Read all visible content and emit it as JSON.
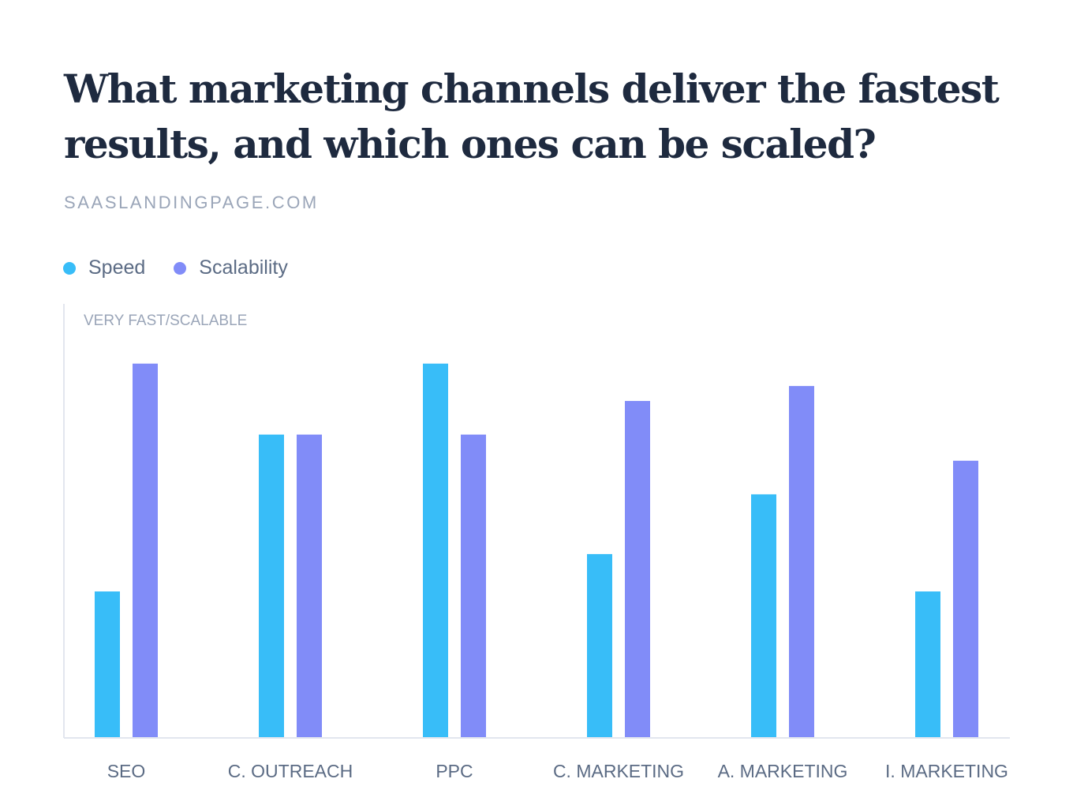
{
  "chart_data": {
    "type": "bar",
    "title": "What marketing channels deliver the fastest results, and which ones can be scaled?",
    "subtitle": "SAASLANDINGPAGE.COM",
    "ylabel": "VERY FAST/SCALABLE",
    "xlabel": "",
    "categories": [
      "SEO",
      "C. OUTREACH",
      "PPC",
      "C. MARKETING",
      "A. MARKETING",
      "I. MARKETING"
    ],
    "series": [
      {
        "name": "Speed",
        "color": "#38bdf8",
        "values": [
          39,
          81,
          100,
          49,
          65,
          39
        ]
      },
      {
        "name": "Scalability",
        "color": "#818cf8",
        "values": [
          100,
          81,
          81,
          90,
          94,
          74
        ]
      }
    ],
    "ylim": [
      0,
      116
    ],
    "grid": false,
    "legend": "top-left"
  }
}
